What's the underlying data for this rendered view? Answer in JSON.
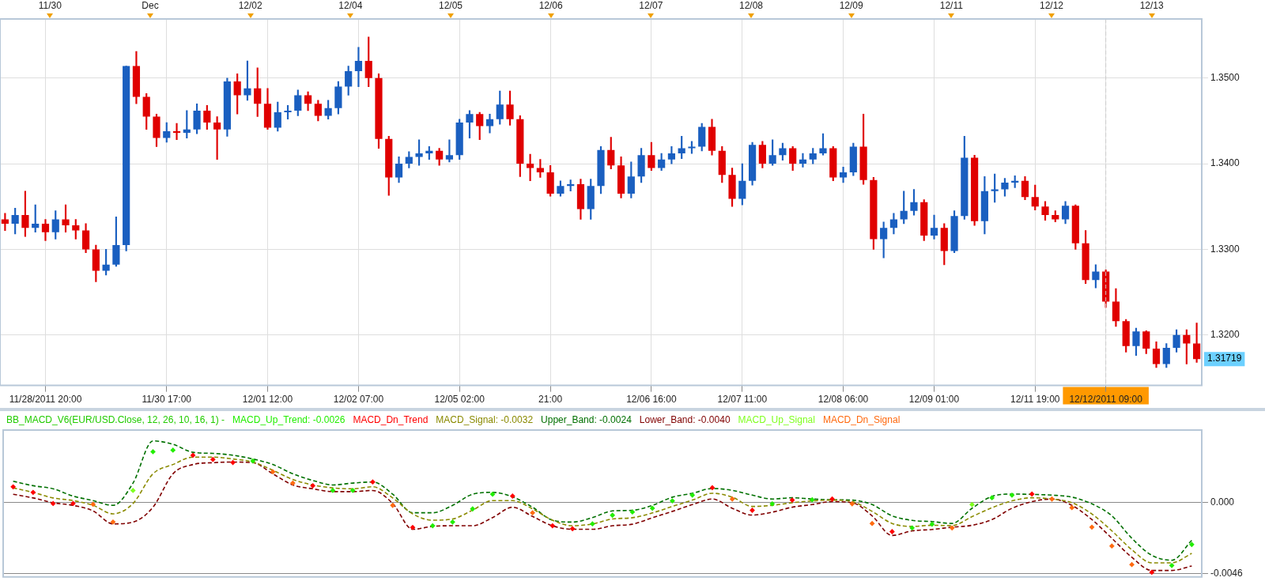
{
  "chart_data": [
    {
      "type": "candlestick",
      "categories": [
        null,
        null,
        null,
        null,
        "11/28/2011 20:00",
        null,
        null,
        null,
        null,
        null,
        null,
        null,
        null,
        null,
        null,
        null,
        "11/30 17:00",
        null,
        null,
        null,
        null,
        null,
        null,
        null,
        null,
        null,
        "12/01 12:00",
        null,
        null,
        null,
        null,
        null,
        null,
        null,
        null,
        "12/02 07:00",
        null,
        null,
        null,
        null,
        null,
        null,
        null,
        null,
        null,
        "12/05 02:00",
        null,
        null,
        null,
        null,
        null,
        null,
        null,
        null,
        "21:00",
        null,
        null,
        null,
        null,
        null,
        null,
        null,
        null,
        null,
        "12/06 16:00",
        null,
        null,
        null,
        null,
        null,
        null,
        null,
        null,
        "12/07 11:00",
        null,
        null,
        null,
        null,
        null,
        null,
        null,
        null,
        null,
        "12/08 06:00",
        null,
        null,
        null,
        null,
        null,
        null,
        null,
        null,
        "12/09 01:00",
        null,
        null,
        null,
        null,
        null,
        null,
        null,
        null,
        null,
        "12/11 19:00",
        null,
        null,
        null,
        null,
        null,
        null,
        "12/12/2011 09:00",
        null,
        null,
        null,
        null,
        null,
        null,
        null,
        null,
        null
      ],
      "ohlc": [
        [
          1.3335,
          1.3342,
          1.3322,
          1.333
        ],
        [
          1.333,
          1.3348,
          1.3318,
          1.334
        ],
        [
          1.334,
          1.3368,
          1.3315,
          1.3325
        ],
        [
          1.3325,
          1.3352,
          1.332,
          1.333
        ],
        [
          1.333,
          1.3335,
          1.331,
          1.332
        ],
        [
          1.332,
          1.3345,
          1.3312,
          1.3335
        ],
        [
          1.3335,
          1.3352,
          1.332,
          1.3328
        ],
        [
          1.3328,
          1.3335,
          1.3312,
          1.3322
        ],
        [
          1.3322,
          1.333,
          1.3296,
          1.33
        ],
        [
          1.33,
          1.3305,
          1.3262,
          1.3275
        ],
        [
          1.3275,
          1.33,
          1.327,
          1.3282
        ],
        [
          1.3282,
          1.3338,
          1.328,
          1.3305
        ],
        [
          1.3305,
          1.3514,
          1.3298,
          1.3514
        ],
        [
          1.3514,
          1.3531,
          1.347,
          1.3478
        ],
        [
          1.3478,
          1.3482,
          1.344,
          1.3455
        ],
        [
          1.3455,
          1.3458,
          1.342,
          1.343
        ],
        [
          1.343,
          1.3448,
          1.3425,
          1.3438
        ],
        [
          1.3438,
          1.3447,
          1.3428,
          1.3436
        ],
        [
          1.3436,
          1.3462,
          1.343,
          1.344
        ],
        [
          1.344,
          1.347,
          1.3435,
          1.3462
        ],
        [
          1.3462,
          1.3468,
          1.344,
          1.3448
        ],
        [
          1.3448,
          1.3455,
          1.3405,
          1.344
        ],
        [
          1.344,
          1.35,
          1.3432,
          1.3496
        ],
        [
          1.3496,
          1.3505,
          1.3458,
          1.348
        ],
        [
          1.348,
          1.352,
          1.3474,
          1.3488
        ],
        [
          1.3488,
          1.3512,
          1.3455,
          1.347
        ],
        [
          1.347,
          1.3488,
          1.344,
          1.3442
        ],
        [
          1.3442,
          1.3472,
          1.3438,
          1.346
        ],
        [
          1.346,
          1.3468,
          1.3452,
          1.3462
        ],
        [
          1.3462,
          1.3486,
          1.3456,
          1.348
        ],
        [
          1.348,
          1.3484,
          1.3462,
          1.347
        ],
        [
          1.347,
          1.3474,
          1.345,
          1.3456
        ],
        [
          1.3456,
          1.3474,
          1.3452,
          1.3465
        ],
        [
          1.3465,
          1.3496,
          1.3458,
          1.349
        ],
        [
          1.349,
          1.3514,
          1.348,
          1.3508
        ],
        [
          1.3508,
          1.3536,
          1.349,
          1.352
        ],
        [
          1.352,
          1.3548,
          1.349,
          1.35
        ],
        [
          1.35,
          1.3505,
          1.3418,
          1.3429
        ],
        [
          1.3429,
          1.3432,
          1.3363,
          1.3384
        ],
        [
          1.3384,
          1.3408,
          1.3378,
          1.34
        ],
        [
          1.34,
          1.3414,
          1.3395,
          1.3408
        ],
        [
          1.3408,
          1.3428,
          1.3398,
          1.3412
        ],
        [
          1.3412,
          1.342,
          1.3405,
          1.3415
        ],
        [
          1.3415,
          1.3418,
          1.3398,
          1.3405
        ],
        [
          1.3405,
          1.3428,
          1.3402,
          1.341
        ],
        [
          1.341,
          1.3452,
          1.3405,
          1.3448
        ],
        [
          1.3448,
          1.3462,
          1.343,
          1.3458
        ],
        [
          1.3458,
          1.346,
          1.3428,
          1.3444
        ],
        [
          1.3444,
          1.3458,
          1.3436,
          1.3452
        ],
        [
          1.3452,
          1.3485,
          1.3446,
          1.3469
        ],
        [
          1.3469,
          1.3485,
          1.3445,
          1.3452
        ],
        [
          1.3452,
          1.3456,
          1.3385,
          1.34
        ],
        [
          1.34,
          1.3411,
          1.338,
          1.3395
        ],
        [
          1.3395,
          1.3405,
          1.3384,
          1.339
        ],
        [
          1.339,
          1.3398,
          1.3362,
          1.3365
        ],
        [
          1.3365,
          1.338,
          1.3362,
          1.3374
        ],
        [
          1.3374,
          1.3381,
          1.3368,
          1.3376
        ],
        [
          1.3376,
          1.3382,
          1.3335,
          1.3347
        ],
        [
          1.3347,
          1.3382,
          1.3335,
          1.3374
        ],
        [
          1.3374,
          1.342,
          1.3365,
          1.3416
        ],
        [
          1.3416,
          1.3431,
          1.3394,
          1.3398
        ],
        [
          1.3398,
          1.3408,
          1.336,
          1.3365
        ],
        [
          1.3365,
          1.3402,
          1.336,
          1.3385
        ],
        [
          1.3385,
          1.3418,
          1.3378,
          1.341
        ],
        [
          1.341,
          1.3425,
          1.3392,
          1.3395
        ],
        [
          1.3395,
          1.3412,
          1.3392,
          1.3405
        ],
        [
          1.3405,
          1.342,
          1.34,
          1.3412
        ],
        [
          1.3412,
          1.3432,
          1.3406,
          1.3418
        ],
        [
          1.3418,
          1.3426,
          1.3412,
          1.342
        ],
        [
          1.342,
          1.3447,
          1.3415,
          1.3443
        ],
        [
          1.3443,
          1.3452,
          1.341,
          1.3415
        ],
        [
          1.3415,
          1.342,
          1.3378,
          1.3387
        ],
        [
          1.3387,
          1.3395,
          1.335,
          1.3359
        ],
        [
          1.3359,
          1.34,
          1.3352,
          1.338
        ],
        [
          1.338,
          1.3425,
          1.3375,
          1.3422
        ],
        [
          1.3422,
          1.3426,
          1.3395,
          1.34
        ],
        [
          1.34,
          1.3428,
          1.3398,
          1.341
        ],
        [
          1.341,
          1.3424,
          1.3404,
          1.3418
        ],
        [
          1.3418,
          1.342,
          1.3392,
          1.34
        ],
        [
          1.34,
          1.3412,
          1.3396,
          1.3405
        ],
        [
          1.3405,
          1.3418,
          1.34,
          1.3412
        ],
        [
          1.3412,
          1.3435,
          1.341,
          1.3418
        ],
        [
          1.3418,
          1.342,
          1.338,
          1.3384
        ],
        [
          1.3384,
          1.3396,
          1.3378,
          1.339
        ],
        [
          1.339,
          1.3424,
          1.3386,
          1.342
        ],
        [
          1.342,
          1.3458,
          1.3376,
          1.3381
        ],
        [
          1.3381,
          1.3384,
          1.33,
          1.3312
        ],
        [
          1.3312,
          1.3332,
          1.329,
          1.3325
        ],
        [
          1.3325,
          1.3342,
          1.3318,
          1.3335
        ],
        [
          1.3335,
          1.3368,
          1.333,
          1.3345
        ],
        [
          1.3345,
          1.337,
          1.334,
          1.3355
        ],
        [
          1.3355,
          1.3358,
          1.331,
          1.3316
        ],
        [
          1.3316,
          1.334,
          1.3312,
          1.3325
        ],
        [
          1.3325,
          1.333,
          1.3282,
          1.3298
        ],
        [
          1.3298,
          1.3345,
          1.3296,
          1.3339
        ],
        [
          1.3339,
          1.3432,
          1.3335,
          1.3407
        ],
        [
          1.3407,
          1.341,
          1.3328,
          1.3333
        ],
        [
          1.3333,
          1.3385,
          1.3318,
          1.3368
        ],
        [
          1.3368,
          1.3388,
          1.3355,
          1.337
        ],
        [
          1.337,
          1.3383,
          1.3362,
          1.3378
        ],
        [
          1.3378,
          1.3386,
          1.3372,
          1.338
        ],
        [
          1.338,
          1.3385,
          1.3358,
          1.3361
        ],
        [
          1.3361,
          1.3375,
          1.3346,
          1.335
        ],
        [
          1.335,
          1.3356,
          1.3334,
          1.334
        ],
        [
          1.334,
          1.3345,
          1.3332,
          1.3335
        ],
        [
          1.3335,
          1.3356,
          1.333,
          1.3351
        ],
        [
          1.3351,
          1.3352,
          1.33,
          1.3307
        ],
        [
          1.3307,
          1.3322,
          1.326,
          1.3264
        ],
        [
          1.3264,
          1.3282,
          1.3255,
          1.3274
        ],
        [
          1.3274,
          1.3276,
          1.3232,
          1.3239
        ],
        [
          1.3239,
          1.3254,
          1.321,
          1.3216
        ],
        [
          1.3216,
          1.3218,
          1.318,
          1.3187
        ],
        [
          1.3187,
          1.3208,
          1.3176,
          1.3204
        ],
        [
          1.3204,
          1.3205,
          1.3178,
          1.3184
        ],
        [
          1.3184,
          1.3192,
          1.3162,
          1.3166
        ],
        [
          1.3166,
          1.319,
          1.3162,
          1.3185
        ],
        [
          1.3185,
          1.3206,
          1.318,
          1.32
        ],
        [
          1.32,
          1.3206,
          1.3166,
          1.319
        ],
        [
          1.319,
          1.3214,
          1.3168,
          1.31719
        ]
      ],
      "colors": [
        "#e00000",
        "#1a5fc0",
        "#e00000",
        "#1a5fc0",
        "#e00000",
        "#1a5fc0",
        "#e00000",
        "#e00000",
        "#e00000",
        "#e00000",
        "#1a5fc0",
        "#1a5fc0",
        "#1a5fc0",
        "#e00000",
        "#e00000",
        "#e00000",
        "#1a5fc0",
        "#e00000",
        "#1a5fc0",
        "#1a5fc0",
        "#e00000",
        "#e00000",
        "#1a5fc0",
        "#e00000",
        "#1a5fc0",
        "#e00000",
        "#e00000",
        "#1a5fc0",
        "#1a5fc0",
        "#1a5fc0",
        "#e00000",
        "#e00000",
        "#1a5fc0",
        "#1a5fc0",
        "#1a5fc0",
        "#1a5fc0",
        "#e00000",
        "#e00000",
        "#e00000",
        "#1a5fc0",
        "#1a5fc0",
        "#1a5fc0",
        "#1a5fc0",
        "#e00000",
        "#1a5fc0",
        "#1a5fc0",
        "#1a5fc0",
        "#e00000",
        "#1a5fc0",
        "#1a5fc0",
        "#e00000",
        "#e00000",
        "#e00000",
        "#e00000",
        "#e00000",
        "#1a5fc0",
        "#1a5fc0",
        "#e00000",
        "#1a5fc0",
        "#1a5fc0",
        "#e00000",
        "#e00000",
        "#1a5fc0",
        "#1a5fc0",
        "#e00000",
        "#1a5fc0",
        "#1a5fc0",
        "#1a5fc0",
        "#1a5fc0",
        "#1a5fc0",
        "#e00000",
        "#e00000",
        "#e00000",
        "#1a5fc0",
        "#1a5fc0",
        "#e00000",
        "#1a5fc0",
        "#1a5fc0",
        "#e00000",
        "#1a5fc0",
        "#1a5fc0",
        "#1a5fc0",
        "#e00000",
        "#1a5fc0",
        "#1a5fc0",
        "#e00000",
        "#e00000",
        "#1a5fc0",
        "#1a5fc0",
        "#1a5fc0",
        "#1a5fc0",
        "#e00000",
        "#1a5fc0",
        "#e00000",
        "#1a5fc0",
        "#1a5fc0",
        "#e00000",
        "#1a5fc0",
        "#1a5fc0",
        "#1a5fc0",
        "#1a5fc0",
        "#e00000",
        "#e00000",
        "#e00000",
        "#e00000",
        "#1a5fc0",
        "#e00000",
        "#e00000",
        "#1a5fc0",
        "#e00000",
        "#e00000",
        "#e00000",
        "#1a5fc0",
        "#e00000",
        "#e00000",
        "#1a5fc0",
        "#1a5fc0",
        "#e00000",
        "#e00000"
      ],
      "ylim": [
        1.3141,
        1.3569
      ],
      "yticks": [
        {
          "value": 1.32,
          "label": "1.3200"
        },
        {
          "value": 1.33,
          "label": "1.3300"
        },
        {
          "value": 1.34,
          "label": "1.3400"
        },
        {
          "value": 1.35,
          "label": "1.3500"
        }
      ],
      "grid": true,
      "ref_lines": [
        {
          "axis": "x",
          "value": "12/12/2011 09:00",
          "color": "#cccccc",
          "line_style": "dashed"
        }
      ],
      "annotations": [
        "1.31719",
        "11/30",
        "Dec",
        "12/02",
        "12/04",
        "12/05",
        "12/06",
        "12/07",
        "12/08",
        "12/09",
        "12/11",
        "12/12",
        "12/13"
      ]
    },
    {
      "type": "line",
      "title": "BB_MACD_V6(EUR/USD.Close, 12, 26, 10, 16, 1) -",
      "categories": [
        null,
        null,
        null,
        null,
        null,
        null,
        null,
        null,
        null,
        null,
        null,
        null,
        null,
        null,
        null,
        null,
        null,
        null,
        null,
        null,
        null,
        null,
        null,
        null,
        null,
        null,
        null,
        null,
        null,
        null,
        null,
        null,
        null,
        null,
        null,
        null,
        null,
        null,
        null,
        null,
        null,
        null,
        null,
        null,
        null,
        null,
        null,
        null,
        null,
        null,
        null,
        null,
        null,
        null,
        null,
        null,
        null,
        null,
        null,
        null
      ],
      "series": [
        {
          "name": "MACD_Up_Trend: -0.0026",
          "type": "scatter",
          "marker": "diamond",
          "color": "#22ee00",
          "values": [
            null,
            null,
            null,
            null,
            null,
            null,
            null,
            0.0033,
            0.0034,
            null,
            null,
            null,
            0.0027,
            null,
            null,
            null,
            0.00079,
            0.00079,
            null,
            null,
            null,
            -0.00149,
            -0.00125,
            -0.0004,
            0.00055,
            null,
            null,
            null,
            null,
            -0.00137,
            -0.00081,
            -0.0006,
            -0.00036,
            0.00012,
            0.00049,
            null,
            null,
            null,
            -7e-05,
            null,
            0.00019,
            null,
            null,
            null,
            null,
            -0.00163,
            -0.00139,
            null,
            null,
            0.00032,
            0.00049,
            null,
            null,
            null,
            null,
            null,
            null,
            null,
            -0.00406,
            -0.0027
          ]
        },
        {
          "name": "MACD_Dn_Trend",
          "type": "scatter",
          "marker": "diamond",
          "color": "#ff0000",
          "values": [
            0.00103,
            0.00067,
            -5e-05,
            -5e-05,
            null,
            null,
            null,
            null,
            null,
            0.00307,
            0.0028,
            0.0026,
            null,
            null,
            null,
            0.0011,
            null,
            null,
            0.00134,
            null,
            -0.0016,
            null,
            null,
            null,
            null,
            0.00043,
            null,
            -0.00149,
            -0.00168,
            null,
            null,
            null,
            null,
            null,
            null,
            0.00097,
            null,
            -0.00049,
            null,
            0.00017,
            null,
            0.00024,
            null,
            null,
            -0.00187,
            null,
            null,
            null,
            null,
            null,
            null,
            0.00056,
            null,
            null,
            null,
            null,
            null,
            -0.0045,
            null,
            null
          ]
        },
        {
          "name": "MACD_Signal: -0.0032",
          "type": "line",
          "line_style": "dashed",
          "color": "#8a8a00",
          "values": [
            0.00096,
            0.00067,
            0.00031,
            0.00014,
            -0.00017,
            -0.00072,
            -5e-05,
            0.00187,
            0.00247,
            0.00295,
            0.00295,
            0.00283,
            0.00263,
            0.0021,
            0.0015,
            0.00115,
            0.00096,
            0.0009,
            0.00103,
            0.00031,
            -0.00072,
            -0.00113,
            -0.00105,
            -0.00048,
            0.00014,
            0.00014,
            -0.0004,
            -0.00113,
            -0.00149,
            -0.00137,
            -0.00105,
            -0.00097,
            -0.00066,
            -0.00024,
            0.00017,
            0.00061,
            0.00036,
            -0.00024,
            -0.00017,
            0,
            0.00012,
            0.00017,
            7e-05,
            -0.00056,
            -0.00134,
            -0.00153,
            -0.00146,
            -0.00148,
            -0.0009,
            -0.00032,
            0.00012,
            0.00032,
            0.00024,
            0,
            -0.00073,
            -0.00182,
            -0.00304,
            -0.00389,
            -0.00389,
            -0.00328
          ]
        },
        {
          "name": "Upper_Band: -0.0024",
          "type": "line",
          "line_style": "dashed",
          "color": "#007000",
          "values": [
            0.00139,
            0.0011,
            0.0009,
            0.00043,
            0.00014,
            -0.00017,
            0.00127,
            0.004,
            0.00378,
            0.00326,
            0.00319,
            0.00307,
            0.00283,
            0.00247,
            0.00187,
            0.00144,
            0.00115,
            0.00127,
            0.00134,
            0.00055,
            -0.00065,
            -0.00065,
            -0.00017,
            0.00055,
            0.00067,
            0.00038,
            -0.00029,
            -0.00113,
            -0.00125,
            -0.00096,
            -0.00053,
            -0.00049,
            -0.00017,
            0.00036,
            0.00061,
            0.00092,
            0.0008,
            0.00049,
            0.00024,
            0.00032,
            0.00024,
            0.00019,
            0.00017,
            -0.00012,
            -0.00085,
            -0.00114,
            -0.00122,
            -0.00134,
            -0.00036,
            0.00041,
            0.00056,
            0.00054,
            0.00049,
            0.00036,
            -7e-05,
            -0.00085,
            -0.0023,
            -0.0034,
            -0.00372,
            -0.00243
          ]
        },
        {
          "name": "Lower_Band: -0.0040",
          "type": "line",
          "line_style": "dashed",
          "color": "#800000",
          "values": [
            0.00055,
            0.00031,
            0,
            -0.00017,
            -0.00053,
            -0.00137,
            -0.00125,
            -0.00029,
            0.00187,
            0.00247,
            0.00259,
            0.00263,
            0.00259,
            0.00187,
            0.00115,
            0.0009,
            0.00072,
            0.00072,
            0.00079,
            -5e-05,
            -0.00172,
            -0.00153,
            -0.00149,
            -0.00149,
            -0.00096,
            -0.00029,
            -0.00089,
            -0.00149,
            -0.00172,
            -0.00172,
            -0.00149,
            -0.00139,
            -0.00097,
            -0.00056,
            -0.00012,
            0.00024,
            -0.00036,
            -0.0008,
            -0.00061,
            -0.00029,
            -0.00012,
            7e-05,
            0,
            -0.00085,
            -0.00212,
            -0.00182,
            -0.00173,
            -0.00158,
            -0.00146,
            -0.00109,
            -0.00036,
            7e-05,
            0.00024,
            -0.00017,
            -0.00109,
            -0.0023,
            -0.00353,
            -0.00438,
            -0.00438,
            -0.00409
          ]
        },
        {
          "name": "MACD_Up_Signal",
          "type": "scatter",
          "marker": "diamond",
          "color": "#80ff20",
          "values": [
            null,
            null,
            null,
            null,
            null,
            null,
            0.00079,
            null,
            null,
            null,
            null,
            null,
            null,
            null,
            null,
            null,
            null,
            null,
            null,
            null,
            null,
            null,
            null,
            null,
            null,
            null,
            null,
            null,
            null,
            null,
            null,
            null,
            null,
            null,
            null,
            null,
            null,
            null,
            null,
            null,
            null,
            null,
            null,
            null,
            null,
            null,
            null,
            null,
            -0.00012,
            null,
            null,
            null,
            null,
            null,
            null,
            null,
            null,
            null,
            null,
            null
          ]
        },
        {
          "name": "MACD_Dn_Signal",
          "type": "scatter",
          "marker": "diamond",
          "color": "#ff6a10",
          "values": [
            null,
            null,
            null,
            null,
            -0.0001,
            -0.00125,
            null,
            null,
            null,
            null,
            null,
            null,
            null,
            0.002,
            0.00127,
            null,
            null,
            null,
            null,
            -0.00017,
            null,
            null,
            null,
            null,
            null,
            null,
            -0.00065,
            null,
            null,
            null,
            null,
            null,
            null,
            null,
            null,
            null,
            0.00024,
            null,
            null,
            null,
            null,
            null,
            -7e-05,
            -0.00134,
            null,
            null,
            null,
            -0.00163,
            null,
            null,
            null,
            null,
            0.00024,
            -0.00032,
            -0.00158,
            -0.0028,
            -0.004,
            null,
            null,
            null
          ]
        }
      ],
      "ylim": [
        -0.0048,
        0.0047
      ],
      "yticks": [
        -0.0046,
        {
          "value": 0,
          "label": "0.000"
        }
      ],
      "grid": "y",
      "legend": "top left"
    }
  ]
}
